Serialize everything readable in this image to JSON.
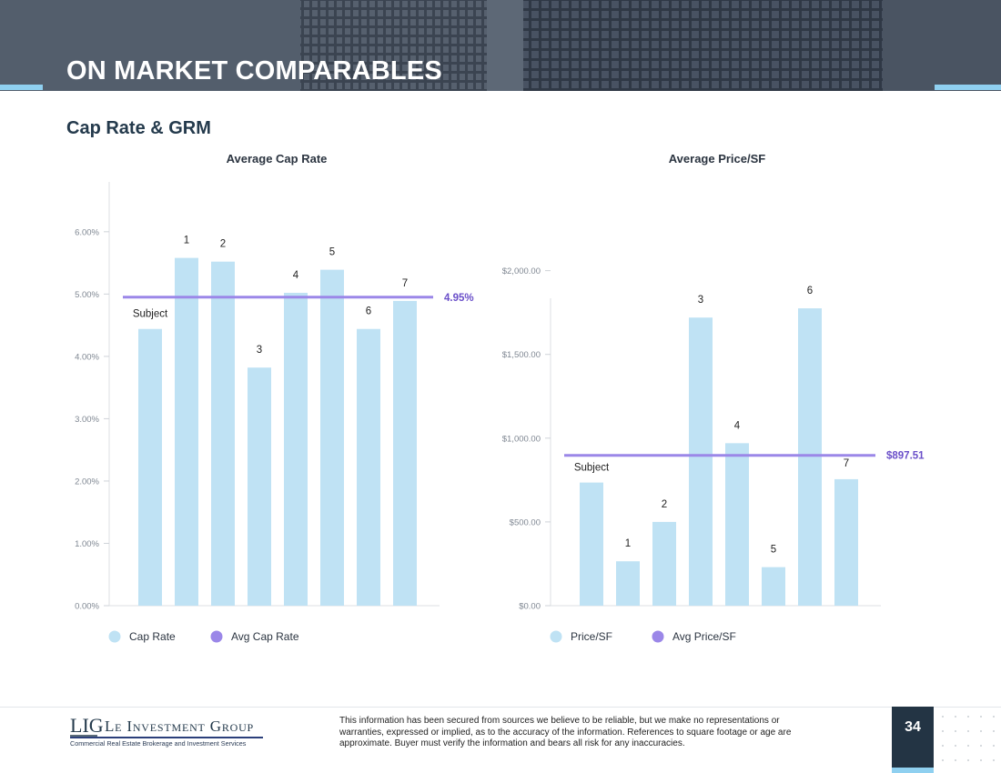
{
  "page": {
    "title": "ON MARKET COMPARABLES",
    "section_title": "Cap Rate & GRM",
    "page_number": "34"
  },
  "footer": {
    "logo_mark": "LIG",
    "company_name": "Le Investment Group",
    "tagline": "Commercial Real Estate Brokerage and Investment Services",
    "disclaimer": "This information has been secured from sources we believe to be reliable, but we make no representations or warranties, expressed or implied, as to the accuracy of the information. References to square footage or age are approximate. Buyer must verify the information and bears all risk for any inaccuracies."
  },
  "colors": {
    "bar": "#bfe2f4",
    "average_line": "#9b87e8",
    "average_label": "#6a4fc9",
    "header_bg": "#4a5563",
    "accent": "#8fd0f0",
    "page_box": "#233444"
  },
  "chart_data": [
    {
      "type": "bar",
      "title": "Average Cap Rate",
      "categories": [
        "Subject",
        "1",
        "2",
        "3",
        "4",
        "5",
        "6",
        "7"
      ],
      "series": [
        {
          "name": "Cap Rate",
          "values": [
            4.44,
            5.58,
            5.52,
            3.82,
            5.02,
            5.39,
            4.44,
            4.89
          ]
        }
      ],
      "average": {
        "name": "Avg Cap Rate",
        "value": 4.95,
        "label": "4.95%"
      },
      "yticks": [
        {
          "value": 0,
          "label": "0.00%"
        },
        {
          "value": 1,
          "label": "1.00%"
        },
        {
          "value": 2,
          "label": "2.00%"
        },
        {
          "value": 3,
          "label": "3.00%"
        },
        {
          "value": 4,
          "label": "4.00%"
        },
        {
          "value": 5,
          "label": "5.00%"
        },
        {
          "value": 6,
          "label": "6.00%"
        }
      ],
      "ylim": [
        0,
        6.8
      ],
      "legend": [
        "Cap Rate",
        "Avg Cap Rate"
      ],
      "legend_position": "bottom-left"
    },
    {
      "type": "bar",
      "title": "Average Price/SF",
      "categories": [
        "Subject",
        "1",
        "2",
        "3",
        "4",
        "5",
        "6",
        "7"
      ],
      "series": [
        {
          "name": "Price/SF",
          "values": [
            735,
            265,
            500,
            1720,
            970,
            230,
            1775,
            755
          ]
        }
      ],
      "average": {
        "name": "Avg Price/SF",
        "value": 897.51,
        "label": "$897.51"
      },
      "yticks": [
        {
          "value": 0,
          "label": "$0.00"
        },
        {
          "value": 500,
          "label": "$500.00"
        },
        {
          "value": 1000,
          "label": "$1,000.00"
        },
        {
          "value": 1500,
          "label": "$1,500.00"
        },
        {
          "value": 2000,
          "label": "$2,000.00"
        }
      ],
      "ylim": [
        0,
        2530
      ],
      "legend": [
        "Price/SF",
        "Avg Price/SF"
      ],
      "legend_position": "bottom-left"
    }
  ]
}
